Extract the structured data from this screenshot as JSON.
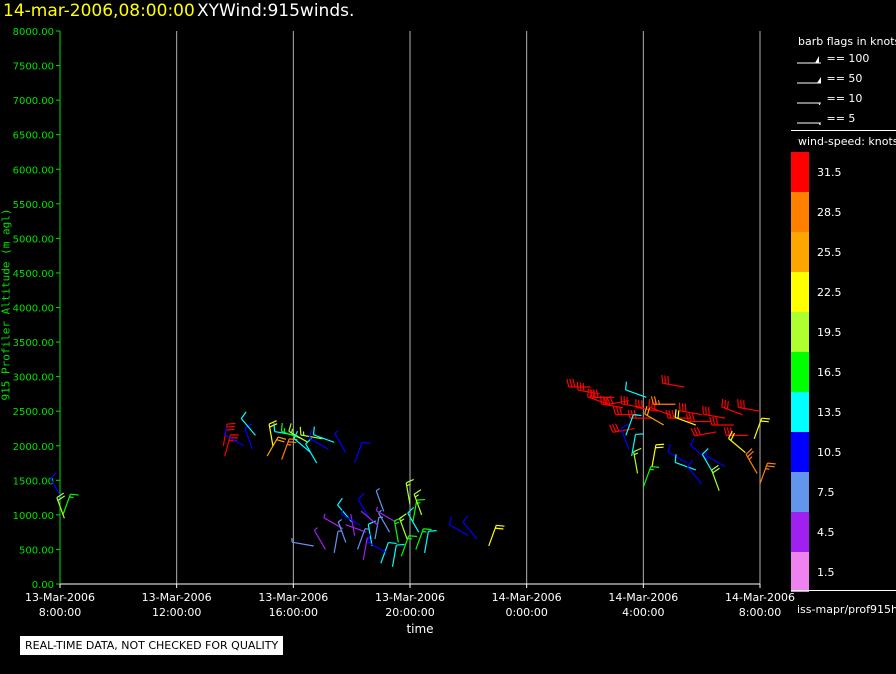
{
  "header": {
    "date_time": "14-mar-2006,08:00:00",
    "product": "XYWind:915winds."
  },
  "chart_data": {
    "type": "scatter",
    "subtype": "wind-barbs time-height",
    "xlabel": "time",
    "ylabel": "915 Profiler Altitude (m agl)",
    "x_ticks": [
      {
        "t": 0,
        "date": "13-Mar-2006",
        "time": "8:00:00"
      },
      {
        "t": 4,
        "date": "13-Mar-2006",
        "time": "12:00:00"
      },
      {
        "t": 8,
        "date": "13-Mar-2006",
        "time": "16:00:00"
      },
      {
        "t": 12,
        "date": "13-Mar-2006",
        "time": "20:00:00"
      },
      {
        "t": 16,
        "date": "14-Mar-2006",
        "time": "0:00:00"
      },
      {
        "t": 20,
        "date": "14-Mar-2006",
        "time": "4:00:00"
      },
      {
        "t": 24,
        "date": "14-Mar-2006",
        "time": "8:00:00"
      }
    ],
    "y_ticks": [
      "0.00",
      "500.00",
      "1000.00",
      "1500.00",
      "2000.00",
      "2500.00",
      "3000.00",
      "3500.00",
      "4000.00",
      "4500.00",
      "5000.00",
      "5500.00",
      "6000.00",
      "6500.00",
      "7000.00",
      "7500.00",
      "8000.00"
    ],
    "xlim_hours": [
      0,
      24
    ],
    "ylim": [
      0,
      8000
    ],
    "grid": "vertical lines at x ticks",
    "barbs": [
      {
        "t": 0.05,
        "alt": 1250,
        "dir": 330,
        "spd": 10
      },
      {
        "t": 0.1,
        "alt": 1000,
        "dir": 20,
        "spd": 16
      },
      {
        "t": 0.15,
        "alt": 950,
        "dir": 340,
        "spd": 20
      },
      {
        "t": 5.6,
        "alt": 2000,
        "dir": 10,
        "spd": 33
      },
      {
        "t": 5.65,
        "alt": 1850,
        "dir": 15,
        "spd": 31
      },
      {
        "t": 6.3,
        "alt": 2000,
        "dir": 300,
        "spd": 10
      },
      {
        "t": 6.6,
        "alt": 1950,
        "dir": 340,
        "spd": 11
      },
      {
        "t": 6.7,
        "alt": 2150,
        "dir": 320,
        "spd": 12
      },
      {
        "t": 7.1,
        "alt": 1850,
        "dir": 30,
        "spd": 24
      },
      {
        "t": 7.3,
        "alt": 2000,
        "dir": 350,
        "spd": 22
      },
      {
        "t": 7.6,
        "alt": 1800,
        "dir": 20,
        "spd": 28
      },
      {
        "t": 8.1,
        "alt": 2150,
        "dir": 280,
        "spd": 14
      },
      {
        "t": 8.3,
        "alt": 2100,
        "dir": 290,
        "spd": 16
      },
      {
        "t": 8.5,
        "alt": 2050,
        "dir": 300,
        "spd": 19
      },
      {
        "t": 8.6,
        "alt": 1900,
        "dir": 310,
        "spd": 13
      },
      {
        "t": 8.8,
        "alt": 1750,
        "dir": 330,
        "spd": 12
      },
      {
        "t": 9.0,
        "alt": 2100,
        "dir": 280,
        "spd": 18
      },
      {
        "t": 9.2,
        "alt": 1950,
        "dir": 300,
        "spd": 11
      },
      {
        "t": 9.4,
        "alt": 2050,
        "dir": 290,
        "spd": 13
      },
      {
        "t": 9.8,
        "alt": 1900,
        "dir": 330,
        "spd": 9
      },
      {
        "t": 10.1,
        "alt": 1750,
        "dir": 20,
        "spd": 10
      },
      {
        "t": 8.7,
        "alt": 550,
        "dir": 280,
        "spd": 6
      },
      {
        "t": 9.1,
        "alt": 500,
        "dir": 330,
        "spd": 5
      },
      {
        "t": 9.4,
        "alt": 450,
        "dir": 10,
        "spd": 8
      },
      {
        "t": 9.7,
        "alt": 800,
        "dir": 300,
        "spd": 5
      },
      {
        "t": 9.8,
        "alt": 600,
        "dir": 340,
        "spd": 7
      },
      {
        "t": 10.0,
        "alt": 900,
        "dir": 320,
        "spd": 12
      },
      {
        "t": 10.1,
        "alt": 700,
        "dir": 350,
        "spd": 4
      },
      {
        "t": 10.2,
        "alt": 500,
        "dir": 20,
        "spd": 6
      },
      {
        "t": 10.3,
        "alt": 850,
        "dir": 300,
        "spd": 9
      },
      {
        "t": 10.4,
        "alt": 350,
        "dir": 10,
        "spd": 5
      },
      {
        "t": 10.5,
        "alt": 750,
        "dir": 290,
        "spd": 4
      },
      {
        "t": 10.6,
        "alt": 950,
        "dir": 330,
        "spd": 10
      },
      {
        "t": 10.7,
        "alt": 550,
        "dir": 350,
        "spd": 13
      },
      {
        "t": 10.8,
        "alt": 650,
        "dir": 10,
        "spd": 7
      },
      {
        "t": 10.9,
        "alt": 850,
        "dir": 310,
        "spd": 3
      },
      {
        "t": 11.0,
        "alt": 300,
        "dir": 20,
        "spd": 14
      },
      {
        "t": 11.1,
        "alt": 1050,
        "dir": 340,
        "spd": 6
      },
      {
        "t": 11.2,
        "alt": 450,
        "dir": 300,
        "spd": 11
      },
      {
        "t": 11.3,
        "alt": 750,
        "dir": 330,
        "spd": 8
      },
      {
        "t": 11.4,
        "alt": 250,
        "dir": 10,
        "spd": 13
      },
      {
        "t": 11.5,
        "alt": 900,
        "dir": 300,
        "spd": 5
      },
      {
        "t": 11.6,
        "alt": 600,
        "dir": 350,
        "spd": 17
      },
      {
        "t": 11.7,
        "alt": 400,
        "dir": 20,
        "spd": 15
      },
      {
        "t": 11.9,
        "alt": 650,
        "dir": 340,
        "spd": 18
      },
      {
        "t": 12.0,
        "alt": 1150,
        "dir": 350,
        "spd": 19
      },
      {
        "t": 12.1,
        "alt": 900,
        "dir": 10,
        "spd": 17
      },
      {
        "t": 12.2,
        "alt": 500,
        "dir": 20,
        "spd": 16
      },
      {
        "t": 12.3,
        "alt": 750,
        "dir": 330,
        "spd": 14
      },
      {
        "t": 12.4,
        "alt": 1000,
        "dir": 340,
        "spd": 19
      },
      {
        "t": 12.5,
        "alt": 450,
        "dir": 10,
        "spd": 13
      },
      {
        "t": 14.0,
        "alt": 700,
        "dir": 300,
        "spd": 10
      },
      {
        "t": 14.3,
        "alt": 650,
        "dir": 320,
        "spd": 11
      },
      {
        "t": 14.7,
        "alt": 550,
        "dir": 20,
        "spd": 21
      },
      {
        "t": 18.2,
        "alt": 2850,
        "dir": 270,
        "spd": 32
      },
      {
        "t": 18.5,
        "alt": 2750,
        "dir": 280,
        "spd": 33
      },
      {
        "t": 18.8,
        "alt": 2600,
        "dir": 290,
        "spd": 31
      },
      {
        "t": 19.0,
        "alt": 2700,
        "dir": 270,
        "spd": 34
      },
      {
        "t": 19.3,
        "alt": 2550,
        "dir": 280,
        "spd": 33
      },
      {
        "t": 19.5,
        "alt": 2650,
        "dir": 260,
        "spd": 31
      },
      {
        "t": 19.8,
        "alt": 2450,
        "dir": 270,
        "spd": 32
      },
      {
        "t": 20.0,
        "alt": 2550,
        "dir": 280,
        "spd": 33
      },
      {
        "t": 19.7,
        "alt": 2250,
        "dir": 260,
        "spd": 30
      },
      {
        "t": 20.1,
        "alt": 2700,
        "dir": 290,
        "spd": 14
      },
      {
        "t": 20.3,
        "alt": 2400,
        "dir": 270,
        "spd": 34
      },
      {
        "t": 20.5,
        "alt": 2500,
        "dir": 280,
        "spd": 32
      },
      {
        "t": 20.7,
        "alt": 2300,
        "dir": 300,
        "spd": 24
      },
      {
        "t": 20.9,
        "alt": 2450,
        "dir": 290,
        "spd": 31
      },
      {
        "t": 21.1,
        "alt": 2600,
        "dir": 270,
        "spd": 29
      },
      {
        "t": 21.4,
        "alt": 2850,
        "dir": 280,
        "spd": 31
      },
      {
        "t": 21.6,
        "alt": 2400,
        "dir": 270,
        "spd": 33
      },
      {
        "t": 21.8,
        "alt": 2300,
        "dir": 290,
        "spd": 22
      },
      {
        "t": 22.0,
        "alt": 2450,
        "dir": 280,
        "spd": 32
      },
      {
        "t": 22.3,
        "alt": 2350,
        "dir": 270,
        "spd": 33
      },
      {
        "t": 22.5,
        "alt": 2200,
        "dir": 260,
        "spd": 31
      },
      {
        "t": 22.8,
        "alt": 2400,
        "dir": 280,
        "spd": 31
      },
      {
        "t": 23.1,
        "alt": 2300,
        "dir": 270,
        "spd": 33
      },
      {
        "t": 23.4,
        "alt": 2450,
        "dir": 290,
        "spd": 32
      },
      {
        "t": 23.6,
        "alt": 2150,
        "dir": 270,
        "spd": 30
      },
      {
        "t": 24.0,
        "alt": 2500,
        "dir": 280,
        "spd": 31
      },
      {
        "t": 19.4,
        "alt": 2150,
        "dir": 20,
        "spd": 14
      },
      {
        "t": 19.6,
        "alt": 1850,
        "dir": 10,
        "spd": 13
      },
      {
        "t": 19.8,
        "alt": 1600,
        "dir": 350,
        "spd": 18
      },
      {
        "t": 20.0,
        "alt": 1400,
        "dir": 20,
        "spd": 16
      },
      {
        "t": 19.5,
        "alt": 1950,
        "dir": 340,
        "spd": 11
      },
      {
        "t": 20.3,
        "alt": 1700,
        "dir": 10,
        "spd": 21
      },
      {
        "t": 21.5,
        "alt": 1750,
        "dir": 300,
        "spd": 11
      },
      {
        "t": 21.8,
        "alt": 1650,
        "dir": 290,
        "spd": 12
      },
      {
        "t": 22.0,
        "alt": 1450,
        "dir": 320,
        "spd": 10
      },
      {
        "t": 22.2,
        "alt": 1800,
        "dir": 310,
        "spd": 10
      },
      {
        "t": 22.4,
        "alt": 1600,
        "dir": 330,
        "spd": 14
      },
      {
        "t": 22.6,
        "alt": 1350,
        "dir": 340,
        "spd": 20
      },
      {
        "t": 22.8,
        "alt": 1700,
        "dir": 300,
        "spd": 9
      },
      {
        "t": 23.5,
        "alt": 1900,
        "dir": 310,
        "spd": 23
      },
      {
        "t": 23.8,
        "alt": 2100,
        "dir": 20,
        "spd": 22
      },
      {
        "t": 23.9,
        "alt": 1600,
        "dir": 330,
        "spd": 28
      },
      {
        "t": 24.0,
        "alt": 1450,
        "dir": 20,
        "spd": 27
      }
    ]
  },
  "legend": {
    "barb_title": "barb flags in knots",
    "barb_items": [
      {
        "label": "== 100",
        "kind": "flag100"
      },
      {
        "label": "== 50",
        "kind": "flag50"
      },
      {
        "label": "== 10",
        "kind": "barb10"
      },
      {
        "label": "== 5",
        "kind": "barb5"
      }
    ],
    "speed_title": "wind-speed: knots",
    "color_scale": [
      {
        "label": "31.5",
        "color": "#ff0000"
      },
      {
        "label": "28.5",
        "color": "#ff7f00"
      },
      {
        "label": "25.5",
        "color": "#ffa500"
      },
      {
        "label": "22.5",
        "color": "#ffff00"
      },
      {
        "label": "19.5",
        "color": "#adff2f"
      },
      {
        "label": "16.5",
        "color": "#00ff00"
      },
      {
        "label": "13.5",
        "color": "#00ffff"
      },
      {
        "label": "10.5",
        "color": "#0000ff"
      },
      {
        "label": "7.5",
        "color": "#6495ed"
      },
      {
        "label": "4.5",
        "color": "#a020f0"
      },
      {
        "label": "1.5",
        "color": "#ee82ee"
      }
    ],
    "source": "iss-mapr/prof915h"
  },
  "footer": {
    "quality_notice": "REAL-TIME DATA, NOT CHECKED FOR QUALITY"
  }
}
